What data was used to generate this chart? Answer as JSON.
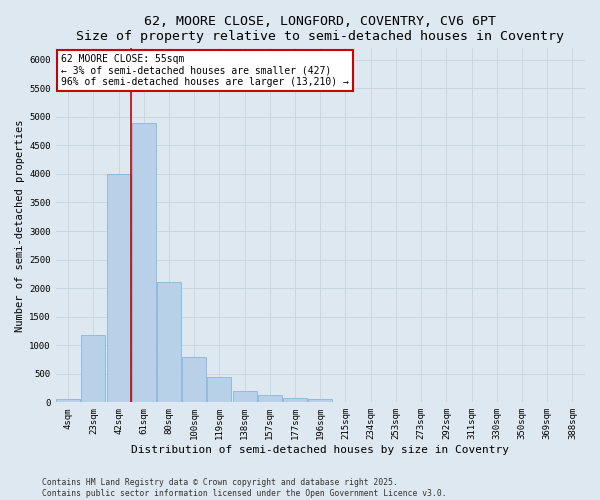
{
  "title1": "62, MOORE CLOSE, LONGFORD, COVENTRY, CV6 6PT",
  "title2": "Size of property relative to semi-detached houses in Coventry",
  "xlabel": "Distribution of semi-detached houses by size in Coventry",
  "ylabel": "Number of semi-detached properties",
  "categories": [
    "4sqm",
    "23sqm",
    "42sqm",
    "61sqm",
    "80sqm",
    "100sqm",
    "119sqm",
    "138sqm",
    "157sqm",
    "177sqm",
    "196sqm",
    "215sqm",
    "234sqm",
    "253sqm",
    "273sqm",
    "292sqm",
    "311sqm",
    "330sqm",
    "350sqm",
    "369sqm",
    "388sqm"
  ],
  "values": [
    55,
    1175,
    4000,
    4900,
    2100,
    800,
    450,
    200,
    130,
    75,
    60,
    0,
    0,
    0,
    0,
    0,
    0,
    0,
    0,
    0,
    0
  ],
  "bar_color": "#b8d0e8",
  "bar_edge_color": "#7aafd4",
  "vline_x": 2.5,
  "vline_color": "#cc0000",
  "annotation_text": "62 MOORE CLOSE: 55sqm\n← 3% of semi-detached houses are smaller (427)\n96% of semi-detached houses are larger (13,210) →",
  "annotation_box_color": "#ffffff",
  "annotation_box_edge": "#cc0000",
  "ylim": [
    0,
    6200
  ],
  "yticks": [
    0,
    500,
    1000,
    1500,
    2000,
    2500,
    3000,
    3500,
    4000,
    4500,
    5000,
    5500,
    6000
  ],
  "background_color": "#dde8f0",
  "footer1": "Contains HM Land Registry data © Crown copyright and database right 2025.",
  "footer2": "Contains public sector information licensed under the Open Government Licence v3.0.",
  "title1_fontsize": 9.5,
  "title2_fontsize": 8.5,
  "tick_fontsize": 6.5,
  "ylabel_fontsize": 7.5,
  "xlabel_fontsize": 8,
  "annot_fontsize": 7,
  "footer_fontsize": 5.8,
  "grid_color": "#c5d5e0"
}
